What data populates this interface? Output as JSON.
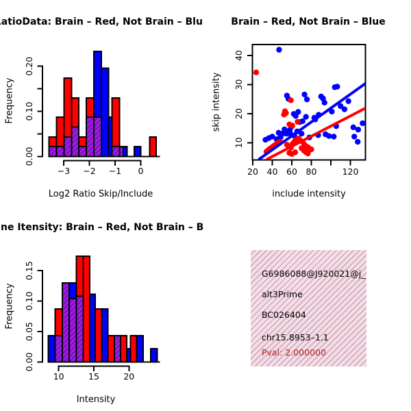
{
  "colors": {
    "red": "#FF0000",
    "blue": "#0000FF",
    "purple": "#A21FE6",
    "purple_stripe": "#7A12B8",
    "pval_red": "#B22222",
    "pink_bg": "#FADCEF",
    "black": "#000000"
  },
  "chart_data": [
    {
      "type": "bar",
      "title": "RatioData: Brain – Red, Not Brain – Blu",
      "xlabel": "Log2 Ratio Skip/Include",
      "ylabel": "Frequency",
      "x_ticks": [
        {
          "v": -3,
          "label": "−3"
        },
        {
          "v": -2,
          "label": "−2"
        },
        {
          "v": -1,
          "label": "−1"
        },
        {
          "v": 0,
          "label": "0"
        }
      ],
      "y_ticks": [
        {
          "v": 0,
          "label": "0.00"
        },
        {
          "v": 0.05,
          "label": ""
        },
        {
          "v": 0.1,
          "label": "0.10"
        },
        {
          "v": 0.15,
          "label": ""
        },
        {
          "v": 0.2,
          "label": "0.20"
        }
      ],
      "xlim": [
        -3.85,
        0.73
      ],
      "ylim": [
        0,
        0.235
      ],
      "series_legend": "red = Brain, blue = Not Brain, hatched purple = overlap",
      "bars": [
        {
          "x": -3.57,
          "w": 0.29,
          "red": 0.043,
          "blue": 0.022
        },
        {
          "x": -3.28,
          "w": 0.29,
          "red": 0.087,
          "blue": 0.022
        },
        {
          "x": -2.99,
          "w": 0.29,
          "red": 0.174,
          "blue": 0.043
        },
        {
          "x": -2.7,
          "w": 0.29,
          "red": 0.13,
          "blue": 0.065
        },
        {
          "x": -2.41,
          "w": 0.29,
          "red": 0.043,
          "blue": 0.022
        },
        {
          "x": -2.12,
          "w": 0.29,
          "red": 0.13,
          "blue": 0.087
        },
        {
          "x": -1.83,
          "w": 0.29,
          "red": 0.087,
          "blue": 0.233
        },
        {
          "x": -1.54,
          "w": 0.29,
          "red": 0.0,
          "blue": 0.196
        },
        {
          "x": -1.25,
          "w": 0.13,
          "red": 0.0,
          "blue": 0.087
        },
        {
          "x": -1.12,
          "w": 0.29,
          "red": 0.13,
          "blue": 0.022
        },
        {
          "x": -0.83,
          "w": 0.15,
          "red": 0.022,
          "blue": 0.022
        },
        {
          "x": -0.68,
          "w": 0.15,
          "red": 0.0,
          "blue": 0.022
        },
        {
          "x": -0.25,
          "w": 0.25,
          "red": 0.0,
          "blue": 0.022
        },
        {
          "x": 0.35,
          "w": 0.25,
          "red": 0.043,
          "blue": 0.0
        }
      ]
    },
    {
      "type": "scatter",
      "title": "Brain – Red, Not Brain – Blue",
      "xlabel": "include intensity",
      "ylabel": "skip intensity",
      "x_ticks": [
        {
          "v": 20,
          "label": "20"
        },
        {
          "v": 40,
          "label": "40"
        },
        {
          "v": 60,
          "label": "60"
        },
        {
          "v": 80,
          "label": "80"
        },
        {
          "v": 100,
          "label": ""
        },
        {
          "v": 120,
          "label": "120"
        }
      ],
      "y_ticks": [
        {
          "v": 10,
          "label": "10"
        },
        {
          "v": 20,
          "label": "20"
        },
        {
          "v": 30,
          "label": "30"
        },
        {
          "v": 40,
          "label": "40"
        }
      ],
      "xlim": [
        19.5,
        135.5
      ],
      "ylim": [
        4.1,
        43.9
      ],
      "blue_points": [
        [
          47,
          42
        ],
        [
          55,
          26.2
        ],
        [
          56.5,
          25.1
        ],
        [
          73,
          26.6
        ],
        [
          75.5,
          24.9
        ],
        [
          90,
          25.9
        ],
        [
          92,
          25.2
        ],
        [
          93.5,
          23.8
        ],
        [
          104,
          29.1
        ],
        [
          106.5,
          29.3
        ],
        [
          118,
          24.3
        ],
        [
          114,
          21.5
        ],
        [
          110,
          22.6
        ],
        [
          101,
          20.7
        ],
        [
          84,
          18.0
        ],
        [
          74.5,
          18.9
        ],
        [
          71,
          17.4
        ],
        [
          62,
          19.9
        ],
        [
          64,
          19.2
        ],
        [
          66.5,
          20.6
        ],
        [
          68,
          17.1
        ],
        [
          83,
          18.6
        ],
        [
          87.5,
          19.6
        ],
        [
          60,
          15.6
        ],
        [
          58,
          14.4
        ],
        [
          56,
          13.7
        ],
        [
          54.5,
          13.1
        ],
        [
          52.5,
          14.6
        ],
        [
          51,
          13.2
        ],
        [
          48.5,
          11.9
        ],
        [
          44.5,
          11.2
        ],
        [
          40,
          12.1
        ],
        [
          36.5,
          11.6
        ],
        [
          33,
          11.0
        ],
        [
          46.5,
          13.4
        ],
        [
          59,
          12.9
        ],
        [
          62.5,
          12.4
        ],
        [
          65.5,
          13.9
        ],
        [
          70,
          13.1
        ],
        [
          78,
          11.8
        ],
        [
          87,
          12.6
        ],
        [
          94.5,
          12.9
        ],
        [
          98,
          12.3
        ],
        [
          103,
          12.1
        ],
        [
          105.5,
          15.7
        ],
        [
          123,
          15.3
        ],
        [
          128,
          14.5
        ],
        [
          124,
          12.1
        ],
        [
          127.5,
          10.3
        ],
        [
          132.5,
          16.7
        ]
      ],
      "red_points": [
        [
          23.5,
          34.2
        ],
        [
          59,
          24.6
        ],
        [
          52,
          19.7
        ],
        [
          54,
          20.2
        ],
        [
          53,
          20.8
        ],
        [
          57.5,
          16.3
        ],
        [
          60.5,
          15.9
        ],
        [
          66,
          17.2
        ],
        [
          34,
          6.9
        ],
        [
          36,
          7.5
        ],
        [
          38,
          8.0
        ],
        [
          40,
          8.5
        ],
        [
          42,
          9.0
        ],
        [
          44,
          9.5
        ],
        [
          46,
          10.0
        ],
        [
          48,
          10.3
        ],
        [
          55,
          9.3
        ],
        [
          57,
          8.7
        ],
        [
          59,
          8.3
        ],
        [
          61,
          9.7
        ],
        [
          63,
          10.5
        ],
        [
          65,
          11.1
        ],
        [
          67,
          11.4
        ],
        [
          69,
          10.7
        ],
        [
          71,
          10.3
        ],
        [
          73,
          9.3
        ],
        [
          75,
          8.7
        ],
        [
          77,
          8.3
        ],
        [
          80,
          7.7
        ],
        [
          57.5,
          6.5
        ],
        [
          60,
          6.1
        ],
        [
          63.5,
          6.7
        ],
        [
          70,
          8.1
        ],
        [
          72.5,
          7.3
        ],
        [
          74.5,
          6.7
        ],
        [
          76.5,
          6.3
        ],
        [
          78,
          7.5
        ]
      ],
      "blue_line": {
        "x1": 26,
        "y1": 4.2,
        "x2": 135.5,
        "y2": 30.4
      },
      "red_line": {
        "x1": 34,
        "y1": 4.2,
        "x2": 135.5,
        "y2": 21.9
      }
    },
    {
      "type": "bar",
      "title": "ne Itensity: Brain – Red, Not Brain – B",
      "xlabel": "Intensity",
      "ylabel": "Frequency",
      "x_ticks": [
        {
          "v": 10,
          "label": "10"
        },
        {
          "v": 15,
          "label": "15"
        },
        {
          "v": 20,
          "label": "20"
        }
      ],
      "y_ticks": [
        {
          "v": 0,
          "label": "0.00"
        },
        {
          "v": 0.05,
          "label": "0.05"
        },
        {
          "v": 0.1,
          "label": "0.10"
        },
        {
          "v": 0.15,
          "label": "0.15"
        }
      ],
      "xlim": [
        7.7,
        24.3
      ],
      "ylim": [
        0,
        0.18
      ],
      "series_legend": "red = Brain, blue = Not Brain, hatched purple = overlap",
      "bars": [
        {
          "x": 8.5,
          "w": 1.0,
          "red": 0.0,
          "blue": 0.043
        },
        {
          "x": 9.5,
          "w": 1.0,
          "red": 0.087,
          "blue": 0.043
        },
        {
          "x": 10.5,
          "w": 1.0,
          "red": 0.13,
          "blue": 0.13
        },
        {
          "x": 11.5,
          "w": 1.0,
          "red": 0.104,
          "blue": 0.13
        },
        {
          "x": 12.5,
          "w": 1.0,
          "red": 0.174,
          "blue": 0.108
        },
        {
          "x": 13.5,
          "w": 0.9,
          "red": 0.174,
          "blue": 0.0
        },
        {
          "x": 14.4,
          "w": 0.8,
          "red": 0.0,
          "blue": 0.111
        },
        {
          "x": 15.2,
          "w": 0.9,
          "red": 0.087,
          "blue": 0.0
        },
        {
          "x": 16.1,
          "w": 0.9,
          "red": 0.0,
          "blue": 0.087
        },
        {
          "x": 17.0,
          "w": 0.9,
          "red": 0.043,
          "blue": 0.0
        },
        {
          "x": 17.9,
          "w": 0.9,
          "red": 0.043,
          "blue": 0.043
        },
        {
          "x": 18.8,
          "w": 0.9,
          "red": 0.043,
          "blue": 0.0
        },
        {
          "x": 19.7,
          "w": 0.5,
          "red": 0.0,
          "blue": 0.022
        },
        {
          "x": 20.2,
          "w": 0.9,
          "red": 0.043,
          "blue": 0.0
        },
        {
          "x": 21.1,
          "w": 0.9,
          "red": 0.0,
          "blue": 0.043
        },
        {
          "x": 23.1,
          "w": 0.9,
          "red": 0.0,
          "blue": 0.022
        }
      ]
    }
  ],
  "tl_hist": {
    "title": "RatioData: Brain – Red, Not Brain – Blu",
    "xlab": "Log2 Ratio Skip/Include",
    "ylab": "Frequency"
  },
  "tr_scatter": {
    "title": "Brain – Red, Not Brain – Blue",
    "xlab": "include intensity",
    "ylab": "skip intensity"
  },
  "bl_hist": {
    "title": "ne Itensity: Brain – Red, Not Brain – B",
    "xlab": "Intensity",
    "ylab": "Frequency"
  },
  "br_info": {
    "gene_id": "G6986088@J920021@j_",
    "splice_type": "alt3Prime",
    "accession": "BC026404",
    "chromosome": "chr15.8953–1.1",
    "pval": "Pval: 2.000000"
  }
}
